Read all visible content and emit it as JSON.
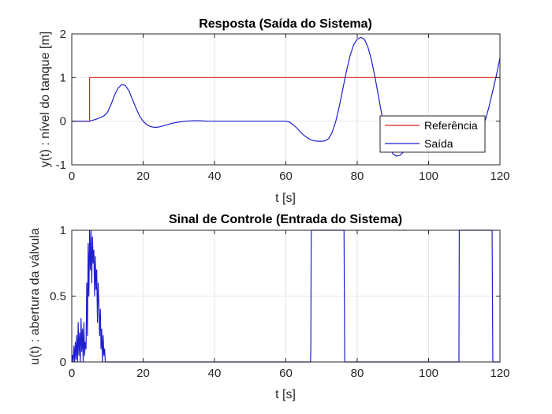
{
  "chart_data": [
    {
      "type": "line",
      "title": "Resposta (Saída do Sistema)",
      "xlabel": "t [s]",
      "ylabel": "y(t) : nível do tanque [m]",
      "xlim": [
        0,
        120
      ],
      "ylim": [
        -1,
        2
      ],
      "xticks": [
        0,
        20,
        40,
        60,
        80,
        100,
        120
      ],
      "yticks": [
        -1,
        0,
        1,
        2
      ],
      "grid": true,
      "legend": "bottom-right",
      "series": [
        {
          "name": "Referência",
          "color": "#e02020",
          "x": [
            0,
            5,
            5,
            120
          ],
          "y": [
            0,
            0,
            1,
            1
          ]
        },
        {
          "name": "Saída",
          "color": "#1f1fcf",
          "x": [
            0,
            5,
            7,
            9,
            10,
            11,
            12,
            13,
            14,
            15,
            16,
            17,
            18,
            19,
            20,
            21,
            22,
            23,
            24,
            26,
            28,
            30,
            32,
            34,
            36,
            38,
            40,
            45,
            50,
            55,
            60,
            61,
            62,
            63,
            64,
            65,
            66,
            67,
            68,
            69,
            70,
            71,
            72,
            73,
            74,
            75,
            76,
            77,
            78,
            79,
            80,
            81,
            82,
            83,
            84,
            85,
            86,
            87,
            88,
            89,
            90,
            91,
            92,
            93,
            94,
            95,
            96,
            97,
            98,
            99,
            100,
            101,
            102,
            103,
            104,
            105,
            106,
            107,
            108,
            109,
            110,
            111,
            112,
            113,
            114,
            115,
            116,
            117,
            118,
            119,
            120
          ],
          "y": [
            0,
            0,
            0.05,
            0.12,
            0.2,
            0.38,
            0.6,
            0.76,
            0.84,
            0.82,
            0.7,
            0.5,
            0.3,
            0.12,
            0.0,
            -0.08,
            -0.12,
            -0.14,
            -0.14,
            -0.1,
            -0.05,
            -0.02,
            0.0,
            0.01,
            0.01,
            0.0,
            0.0,
            0.0,
            0.0,
            0.0,
            0.0,
            -0.02,
            -0.08,
            -0.15,
            -0.24,
            -0.32,
            -0.38,
            -0.43,
            -0.45,
            -0.46,
            -0.46,
            -0.45,
            -0.4,
            -0.25,
            0.0,
            0.35,
            0.75,
            1.15,
            1.5,
            1.75,
            1.88,
            1.92,
            1.88,
            1.7,
            1.4,
            1.0,
            0.55,
            0.1,
            -0.3,
            -0.6,
            -0.75,
            -0.8,
            -0.78,
            -0.7,
            -0.6,
            -0.5,
            -0.45,
            -0.45,
            -0.45,
            -0.45,
            -0.46,
            -0.48,
            -0.5,
            -0.52,
            -0.53,
            -0.52,
            -0.5,
            -0.48,
            -0.47,
            -0.46,
            -0.45,
            -0.43,
            -0.4,
            -0.35,
            -0.28,
            -0.15,
            0.05,
            0.35,
            0.7,
            1.05,
            1.45
          ]
        }
      ]
    },
    {
      "type": "line",
      "title": "Sinal de Controle (Entrada do Sistema)",
      "xlabel": "t [s]",
      "ylabel": "u(t) : abertura da válvula",
      "xlim": [
        0,
        120
      ],
      "ylim": [
        0,
        1
      ],
      "xticks": [
        0,
        20,
        40,
        60,
        80,
        100,
        120
      ],
      "yticks": [
        0,
        0.5,
        1
      ],
      "grid": true,
      "series": [
        {
          "name": "",
          "color": "#1f1fcf",
          "x": [
            0,
            0.2,
            0.4,
            0.6,
            0.8,
            1.0,
            1.2,
            1.4,
            1.6,
            1.8,
            2.0,
            2.2,
            2.4,
            2.6,
            2.8,
            3.0,
            3.2,
            3.4,
            3.6,
            3.8,
            4.0,
            4.2,
            4.4,
            4.6,
            4.8,
            5.0,
            5.2,
            5.4,
            5.6,
            5.8,
            6.0,
            6.2,
            6.4,
            6.6,
            6.8,
            7.0,
            7.2,
            7.4,
            7.6,
            7.8,
            8.0,
            8.2,
            8.4,
            8.6,
            8.8,
            9.0,
            9.2,
            9.4,
            10,
            20,
            40,
            60,
            66.9,
            67.0,
            67.1,
            67.2,
            76.3,
            76.4,
            76.5,
            108.5,
            108.6,
            117.8,
            117.9,
            118.0,
            120
          ],
          "y": [
            0,
            0.05,
            0,
            0.12,
            0,
            0.15,
            0.02,
            0.2,
            0,
            0.3,
            0.05,
            0.22,
            0,
            0.33,
            0.08,
            0.25,
            0,
            0.3,
            0.05,
            0.15,
            0.1,
            0.6,
            0.2,
            0.9,
            0.5,
            1.0,
            0.7,
            1.0,
            0.6,
            0.95,
            0.75,
            0.85,
            0.5,
            0.8,
            0.55,
            0.7,
            0.3,
            0.6,
            0.45,
            0.2,
            0.4,
            0.1,
            0.25,
            0.0,
            0.2,
            0.05,
            0.1,
            0,
            0,
            0,
            0,
            0,
            0,
            0.1,
            0.95,
            1.0,
            1.0,
            0.5,
            0,
            0,
            1.0,
            1.0,
            0.5,
            0,
            0
          ]
        }
      ]
    }
  ]
}
